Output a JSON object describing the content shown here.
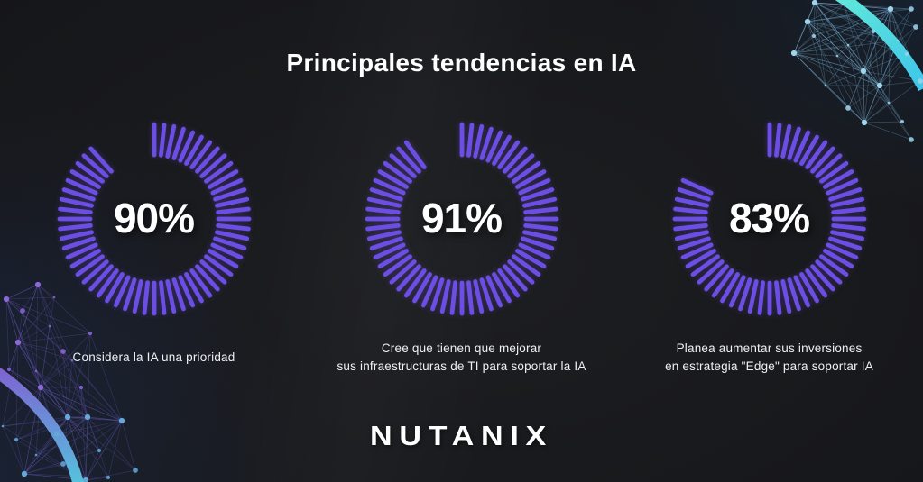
{
  "title": "Principales tendencias en IA",
  "brand": {
    "logo_text": "NUTANIX"
  },
  "colors": {
    "background": "#17181b",
    "tick": "#6C4EE4",
    "text": "#ffffff",
    "arc_cyan": "#4fdcd9",
    "arc_purple": "#7e63d2"
  },
  "stats": [
    {
      "percent": 90,
      "percent_label": "90%",
      "caption": "Considera la IA una prioridad"
    },
    {
      "percent": 91,
      "percent_label": "91%",
      "caption": "Cree que tienen que mejorar\nsus infraestructuras de TI para soportar la IA"
    },
    {
      "percent": 83,
      "percent_label": "83%",
      "caption": "Planea aumentar sus inversiones\nen estrategia \"Edge\" para soportar IA"
    }
  ],
  "chart_data": [
    {
      "type": "pie",
      "style": "radial-tick-gauge",
      "title": "Considera la IA una prioridad",
      "center_label": "90%",
      "values": [
        90,
        10
      ],
      "units": "%",
      "color": "#6C4EE4",
      "start_angle_deg": 0,
      "direction": "clockwise",
      "ticks_full_circle": 60,
      "legend": "none"
    },
    {
      "type": "pie",
      "style": "radial-tick-gauge",
      "title": "Cree que tienen que mejorar sus infraestructuras de TI para soportar la IA",
      "center_label": "91%",
      "values": [
        91,
        9
      ],
      "units": "%",
      "color": "#6C4EE4",
      "start_angle_deg": 0,
      "direction": "clockwise",
      "ticks_full_circle": 60,
      "legend": "none"
    },
    {
      "type": "pie",
      "style": "radial-tick-gauge",
      "title": "Planea aumentar sus inversiones en estrategia \"Edge\" para soportar IA",
      "center_label": "83%",
      "values": [
        83,
        17
      ],
      "units": "%",
      "color": "#6C4EE4",
      "start_angle_deg": 0,
      "direction": "clockwise",
      "ticks_full_circle": 60,
      "legend": "none"
    }
  ]
}
